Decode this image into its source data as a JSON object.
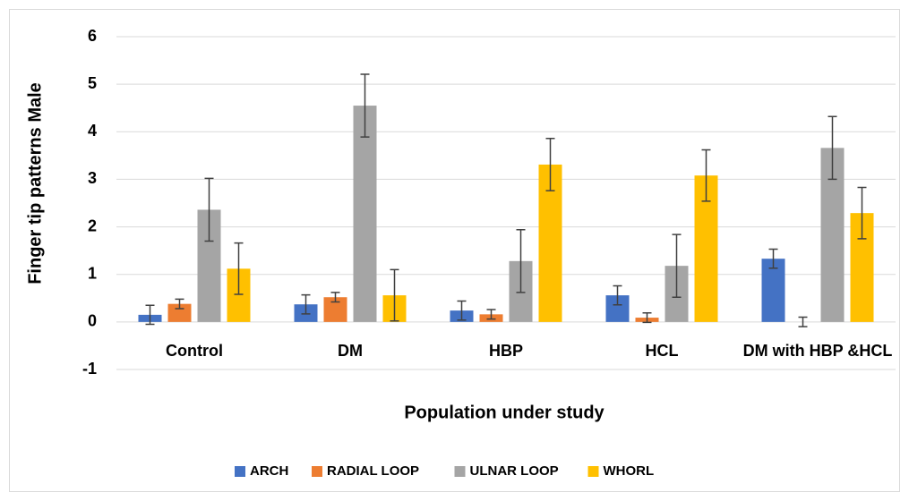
{
  "chart_data": {
    "type": "bar",
    "x_label": "Population under study",
    "y_label": "Finger tip patterns Male",
    "categories": [
      "Control",
      "DM",
      "HBP",
      "HCL",
      "DM with HBP &HCL"
    ],
    "series": [
      {
        "name": "ARCH",
        "color": "#4472c4",
        "values": [
          0.15,
          0.37,
          0.24,
          0.56,
          1.33
        ],
        "errors": [
          0.2,
          0.2,
          0.2,
          0.2,
          0.2
        ]
      },
      {
        "name": "RADIAL LOOP",
        "color": "#ed7d31",
        "values": [
          0.38,
          0.52,
          0.16,
          0.09,
          0
        ],
        "errors": [
          0.1,
          0.1,
          0.1,
          0.1,
          0.1
        ]
      },
      {
        "name": "ULNAR LOOP",
        "color": "#a5a5a5",
        "values": [
          2.36,
          4.55,
          1.28,
          1.18,
          3.66
        ],
        "errors": [
          0.66,
          0.66,
          0.66,
          0.66,
          0.66
        ]
      },
      {
        "name": "WHORL",
        "color": "#ffc000",
        "values": [
          1.12,
          0.56,
          3.31,
          3.08,
          2.29
        ],
        "errors": [
          0.54,
          0.54,
          0.55,
          0.54,
          0.54
        ]
      }
    ],
    "ylim": [
      -1,
      6
    ],
    "yticks": [
      -1,
      0,
      1,
      2,
      3,
      4,
      5,
      6
    ],
    "grid": true,
    "legend": "bottom"
  }
}
